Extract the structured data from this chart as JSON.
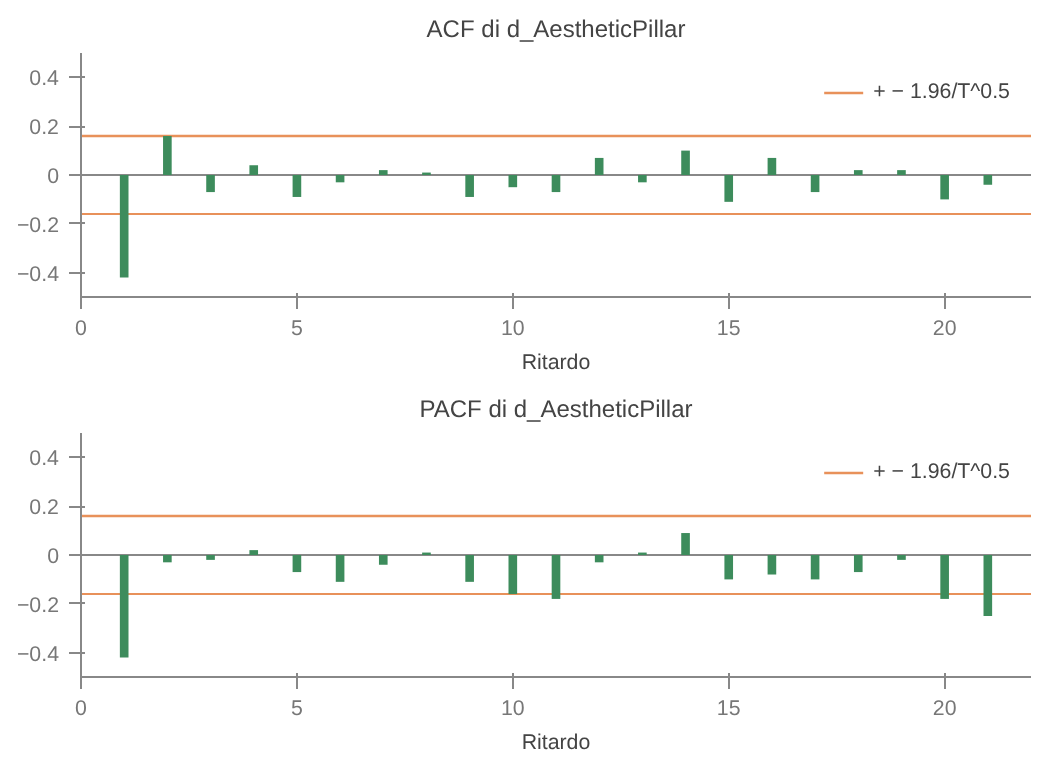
{
  "chart_data": [
    {
      "type": "bar",
      "title": "ACF di d_AestheticPillar",
      "xlabel": "Ritardo",
      "x": [
        1,
        2,
        3,
        4,
        5,
        6,
        7,
        8,
        9,
        10,
        11,
        12,
        13,
        14,
        15,
        16,
        17,
        18,
        19,
        20,
        21
      ],
      "series": [
        {
          "color": "#3d8c5c",
          "values": [
            -0.42,
            0.16,
            -0.07,
            0.04,
            -0.09,
            -0.03,
            0.02,
            0.01,
            -0.09,
            -0.05,
            -0.07,
            0.07,
            -0.03,
            0.1,
            -0.11,
            0.07,
            -0.07,
            0.02,
            0.02,
            -0.1,
            -0.04
          ]
        }
      ],
      "xlim": [
        0,
        22
      ],
      "xticks": [
        0,
        5,
        10,
        15,
        20
      ],
      "ylim": [
        -0.5,
        0.5
      ],
      "yticks": [
        -0.4,
        -0.2,
        0,
        0.2,
        0.4
      ],
      "ref_lines": [
        {
          "axis": "y",
          "value": 0.16,
          "label": "+ − 1.96/T^0.5",
          "color": "#e8915a"
        },
        {
          "axis": "y",
          "value": -0.16,
          "color": "#e8915a"
        },
        {
          "axis": "y",
          "value": 0,
          "color": "#888888"
        }
      ],
      "legend": "top right",
      "grid": false
    },
    {
      "type": "bar",
      "title": "PACF di d_AestheticPillar",
      "xlabel": "Ritardo",
      "x": [
        1,
        2,
        3,
        4,
        5,
        6,
        7,
        8,
        9,
        10,
        11,
        12,
        13,
        14,
        15,
        16,
        17,
        18,
        19,
        20,
        21
      ],
      "series": [
        {
          "color": "#3d8c5c",
          "values": [
            -0.42,
            -0.03,
            -0.02,
            0.02,
            -0.07,
            -0.11,
            -0.04,
            0.01,
            -0.11,
            -0.16,
            -0.18,
            -0.03,
            0.01,
            0.09,
            -0.1,
            -0.08,
            -0.1,
            -0.07,
            -0.02,
            -0.18,
            -0.25
          ]
        }
      ],
      "xlim": [
        0,
        22
      ],
      "xticks": [
        0,
        5,
        10,
        15,
        20
      ],
      "ylim": [
        -0.5,
        0.5
      ],
      "yticks": [
        -0.4,
        -0.2,
        0,
        0.2,
        0.4
      ],
      "ref_lines": [
        {
          "axis": "y",
          "value": 0.16,
          "label": "+ − 1.96/T^0.5",
          "color": "#e8915a"
        },
        {
          "axis": "y",
          "value": -0.16,
          "color": "#e8915a"
        },
        {
          "axis": "y",
          "value": 0,
          "color": "#888888"
        }
      ],
      "legend": "top right",
      "grid": false
    }
  ]
}
